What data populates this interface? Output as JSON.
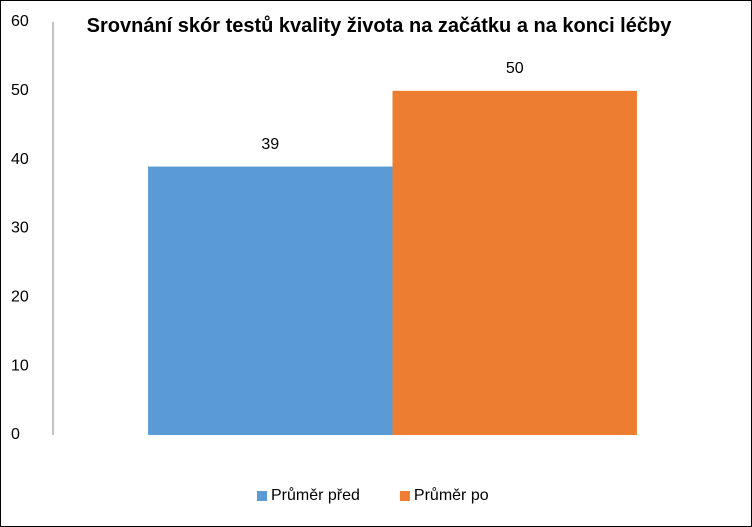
{
  "chart_data": {
    "type": "bar",
    "title": "Srovnání skór testů kvality života na začátku a na konci léčby",
    "categories": [
      null
    ],
    "series": [
      {
        "name": "Průměr před",
        "color": "#5b9bd5",
        "values": [
          39
        ]
      },
      {
        "name": "Průměr po",
        "color": "#ed7d31",
        "values": [
          50
        ]
      }
    ],
    "ylim": [
      0,
      60
    ],
    "yticks": [
      0,
      10,
      20,
      30,
      40,
      50,
      60
    ],
    "grid": false,
    "legend": "bottom"
  }
}
